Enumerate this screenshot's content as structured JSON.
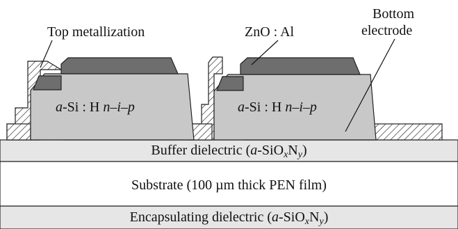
{
  "labels": {
    "top_metallization": "Top metallization",
    "zno_al": "ZnO : Al",
    "bottom_electrode_line1": "Bottom",
    "bottom_electrode_line2": "electrode"
  },
  "cells": [
    {
      "si_prefix": "a",
      "si_suffix": "-Si : H ",
      "doping": "n–i–p"
    },
    {
      "si_prefix": "a",
      "si_suffix": "-Si : H ",
      "doping": "n–i–p"
    }
  ],
  "layers": {
    "buffer": {
      "prefix": "Buffer dielectric (",
      "a": "a",
      "siox": "-SiO",
      "x": "x",
      "n": "N",
      "y": "y",
      "suffix": ")"
    },
    "substrate": "Substrate (100 µm thick PEN film)",
    "encapsulation": {
      "prefix": "Encapsulating dielectric (",
      "a": "a",
      "siox": "-SiO",
      "x": "x",
      "n": "N",
      "y": "y",
      "suffix": ")"
    }
  },
  "colors": {
    "silicon": "#c8c8c8",
    "zno": "#6e6e6e",
    "buffer": "#e6e6e6",
    "encapsulation": "#e6e6e6",
    "substrate": "#ffffff",
    "hatch": "#222222"
  }
}
